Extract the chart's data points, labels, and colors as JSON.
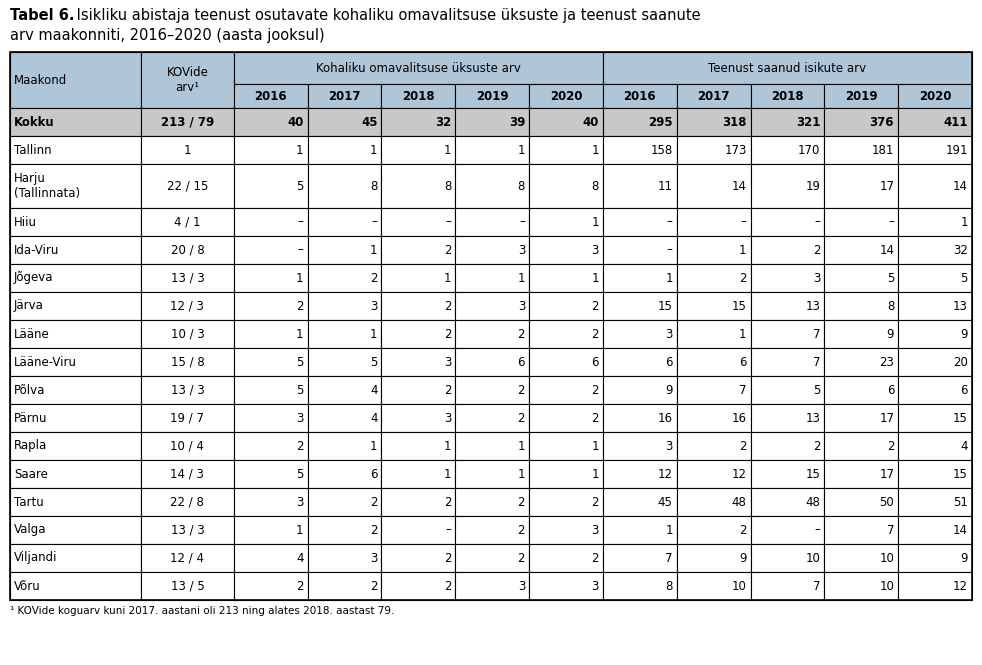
{
  "title_bold": "Tabel 6.",
  "title_rest": " Isikliku abistaja teenust osutavate kohaliku omavalitsuse üksuste ja teenust saanute arv maakonniti, 2016–2020 (aasta jooksul)",
  "footnote": "¹ KOVide koguarv kuni 2017. aastani oli 213 ning alates 2018. aastast 79.",
  "header_bg": "#aec6d8",
  "kokku_bg": "#c8c8c8",
  "white_bg": "#ffffff",
  "border_color": "#000000",
  "rows": [
    [
      "Kokku",
      "213 / 79",
      "40",
      "45",
      "32",
      "39",
      "40",
      "295",
      "318",
      "321",
      "376",
      "411"
    ],
    [
      "Tallinn",
      "1",
      "1",
      "1",
      "1",
      "1",
      "1",
      "158",
      "173",
      "170",
      "181",
      "191"
    ],
    [
      "Harju\n(Tallinnata)",
      "22 / 15",
      "5",
      "8",
      "8",
      "8",
      "8",
      "11",
      "14",
      "19",
      "17",
      "14"
    ],
    [
      "Hiiu",
      "4 / 1",
      "–",
      "–",
      "–",
      "–",
      "1",
      "–",
      "–",
      "–",
      "–",
      "1"
    ],
    [
      "Ida-Viru",
      "20 / 8",
      "–",
      "1",
      "2",
      "3",
      "3",
      "–",
      "1",
      "2",
      "14",
      "32"
    ],
    [
      "Jõgeva",
      "13 / 3",
      "1",
      "2",
      "1",
      "1",
      "1",
      "1",
      "2",
      "3",
      "5",
      "5"
    ],
    [
      "Järva",
      "12 / 3",
      "2",
      "3",
      "2",
      "3",
      "2",
      "15",
      "15",
      "13",
      "8",
      "13"
    ],
    [
      "Lääne",
      "10 / 3",
      "1",
      "1",
      "2",
      "2",
      "2",
      "3",
      "1",
      "7",
      "9",
      "9"
    ],
    [
      "Lääne-Viru",
      "15 / 8",
      "5",
      "5",
      "3",
      "6",
      "6",
      "6",
      "6",
      "7",
      "23",
      "20"
    ],
    [
      "Põlva",
      "13 / 3",
      "5",
      "4",
      "2",
      "2",
      "2",
      "9",
      "7",
      "5",
      "6",
      "6"
    ],
    [
      "Pärnu",
      "19 / 7",
      "3",
      "4",
      "3",
      "2",
      "2",
      "16",
      "16",
      "13",
      "17",
      "15"
    ],
    [
      "Rapla",
      "10 / 4",
      "2",
      "1",
      "1",
      "1",
      "1",
      "3",
      "2",
      "2",
      "2",
      "4"
    ],
    [
      "Saare",
      "14 / 3",
      "5",
      "6",
      "1",
      "1",
      "1",
      "12",
      "12",
      "15",
      "17",
      "15"
    ],
    [
      "Tartu",
      "22 / 8",
      "3",
      "2",
      "2",
      "2",
      "2",
      "45",
      "48",
      "48",
      "50",
      "51"
    ],
    [
      "Valga",
      "13 / 3",
      "1",
      "2",
      "–",
      "2",
      "3",
      "1",
      "2",
      "–",
      "7",
      "14"
    ],
    [
      "Viljandi",
      "12 / 4",
      "4",
      "3",
      "2",
      "2",
      "2",
      "7",
      "9",
      "10",
      "10",
      "9"
    ],
    [
      "Võru",
      "13 / 5",
      "2",
      "2",
      "2",
      "3",
      "3",
      "8",
      "10",
      "7",
      "10",
      "12"
    ]
  ],
  "fig_width": 9.82,
  "fig_height": 6.65,
  "dpi": 100
}
